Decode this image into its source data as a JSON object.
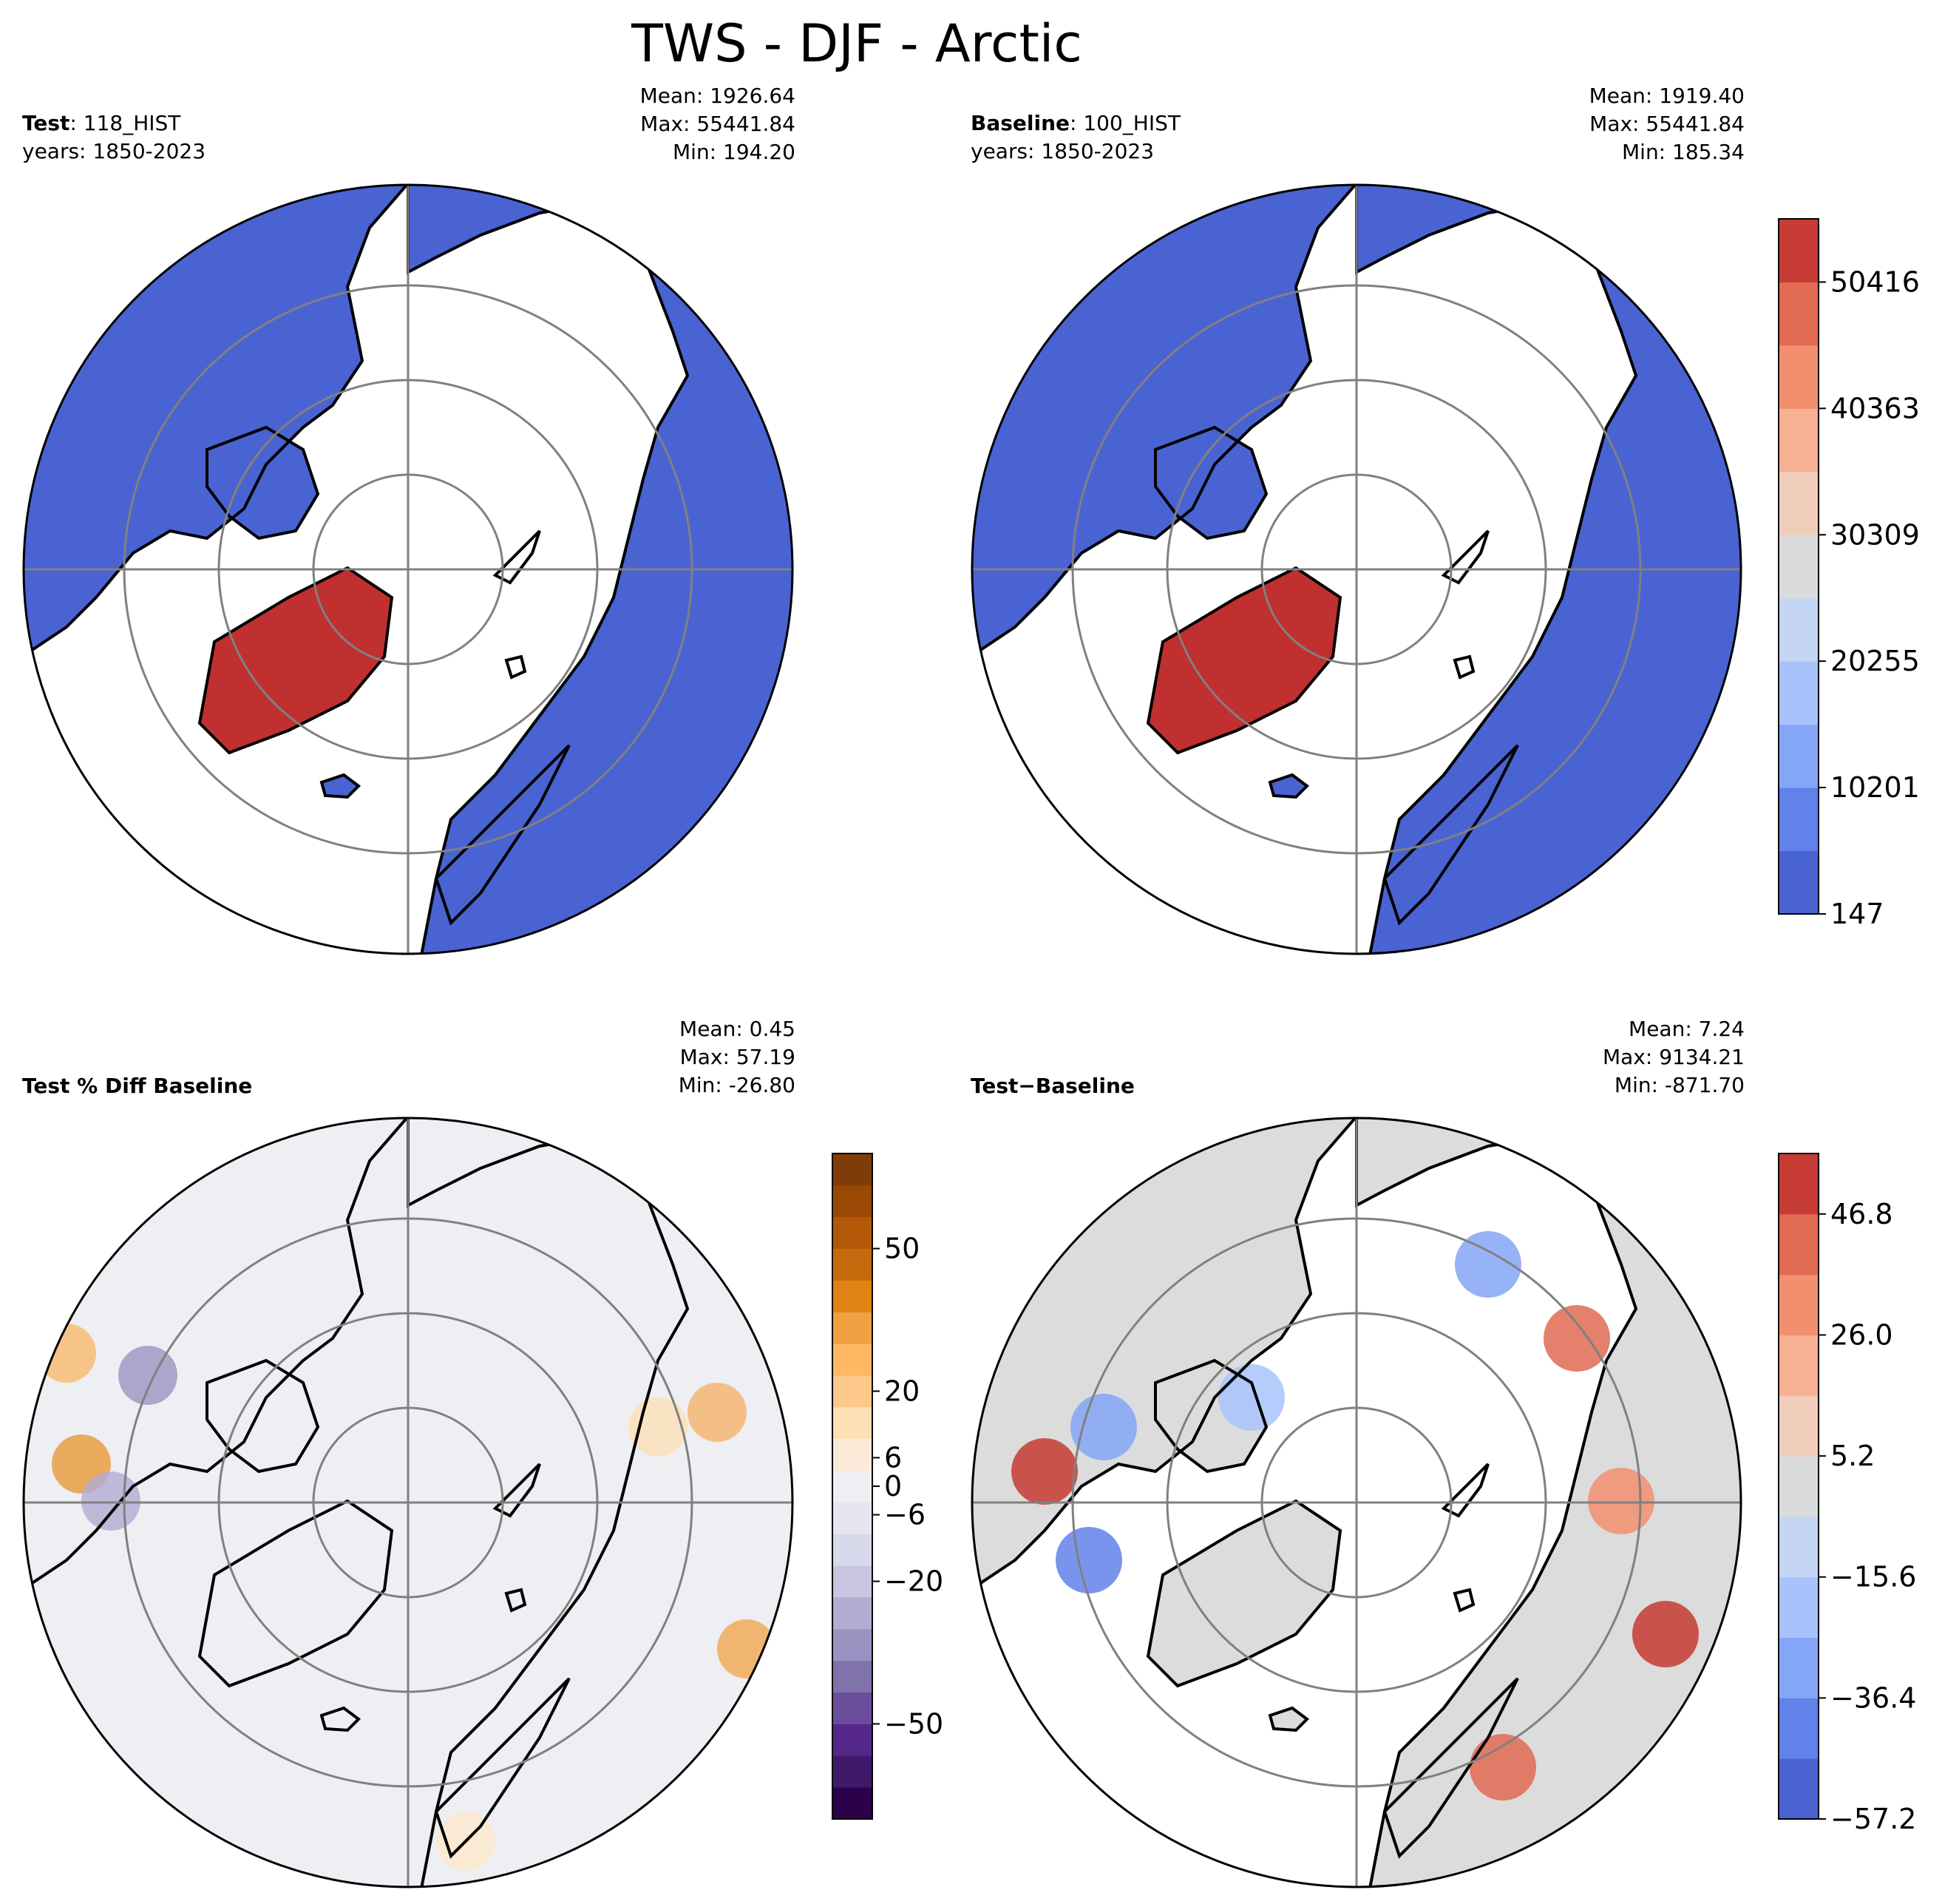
{
  "chart_data": {
    "type": "heatmap",
    "title": "TWS - DJF - Arctic",
    "projection": "north-polar-stereographic",
    "panels": [
      {
        "name": "test",
        "label_bold": "Test",
        "label_sep": ":",
        "label_value": "118_HIST",
        "years": "years: 1850-2023",
        "stats": {
          "mean": "Mean: 1926.64",
          "max": "Max: 55441.84",
          "min": "Min: 194.20"
        },
        "colormap": "coolwarm",
        "ocean_color": "#ffffff",
        "land_low_color": "#4a63d3",
        "greenland_color": "#c03030"
      },
      {
        "name": "baseline",
        "label_bold": "Baseline",
        "label_sep": ":",
        "label_value": "100_HIST",
        "years": "years: 1850-2023",
        "stats": {
          "mean": "Mean: 1919.40",
          "max": "Max: 55441.84",
          "min": "Min: 185.34"
        },
        "colormap": "coolwarm",
        "ocean_color": "#ffffff",
        "land_low_color": "#4a63d3",
        "greenland_color": "#c03030"
      },
      {
        "name": "pct-diff",
        "label_bold": "Test % Diff Baseline",
        "stats": {
          "mean": "Mean:  0.45",
          "max": "Max: 57.19",
          "min": "Min: -26.80"
        },
        "colormap": "PuOr_r",
        "background_color": "#eeeff3"
      },
      {
        "name": "diff",
        "label_bold": "Test",
        "label_sep": "−",
        "label_value": "Baseline",
        "stats": {
          "mean": "Mean:  7.24",
          "max": "Max: 9134.21",
          "min": "Min: -871.70"
        },
        "colormap": "coolwarm",
        "background_color": "#dcdcdc"
      }
    ],
    "colorbars": [
      {
        "name": "main",
        "range": [
          147,
          55441.84
        ],
        "ticks": [
          147,
          10201,
          20255,
          30309,
          40363,
          50416
        ],
        "tick_labels": [
          "147",
          "10201",
          "20255",
          "30309",
          "40363",
          "50416"
        ],
        "colors": [
          "#4a63d3",
          "#6281e9",
          "#85a6f7",
          "#a8c3fb",
          "#c4d5f3",
          "#dadbdc",
          "#f0cdbb",
          "#f6b092",
          "#f18f6f",
          "#e16a52",
          "#c63b33"
        ]
      },
      {
        "name": "pct-diff",
        "range": [
          -70,
          70
        ],
        "ticks": [
          -50,
          -20,
          -6,
          0,
          6,
          20,
          50
        ],
        "tick_labels": [
          "−50",
          "−20",
          "−6",
          "0",
          "6",
          "20",
          "50"
        ],
        "colors": [
          "#2d004b",
          "#3f1a6b",
          "#542788",
          "#6b4e9b",
          "#8073ac",
          "#9c92c2",
          "#b2abd2",
          "#cac6e1",
          "#d8daeb",
          "#e6e6f0",
          "#eeeff3",
          "#fbebd8",
          "#fee0b6",
          "#fdc98a",
          "#fdb863",
          "#f0a040",
          "#e08214",
          "#c66a0e",
          "#b35806",
          "#9a4904",
          "#7f3b08"
        ]
      },
      {
        "name": "diff",
        "range": [
          -57.2,
          57.2
        ],
        "ticks": [
          -57.2,
          -36.4,
          -15.6,
          5.2,
          26.0,
          46.8
        ],
        "tick_labels": [
          "−57.2",
          "−36.4",
          "−15.6",
          "5.2",
          "26.0",
          "46.8"
        ],
        "colors": [
          "#4a63d3",
          "#6281e9",
          "#85a6f7",
          "#a8c3fb",
          "#c4d5f3",
          "#dadbdc",
          "#f0cdbb",
          "#f6b092",
          "#f18f6f",
          "#e16a52",
          "#c63b33"
        ]
      }
    ]
  }
}
